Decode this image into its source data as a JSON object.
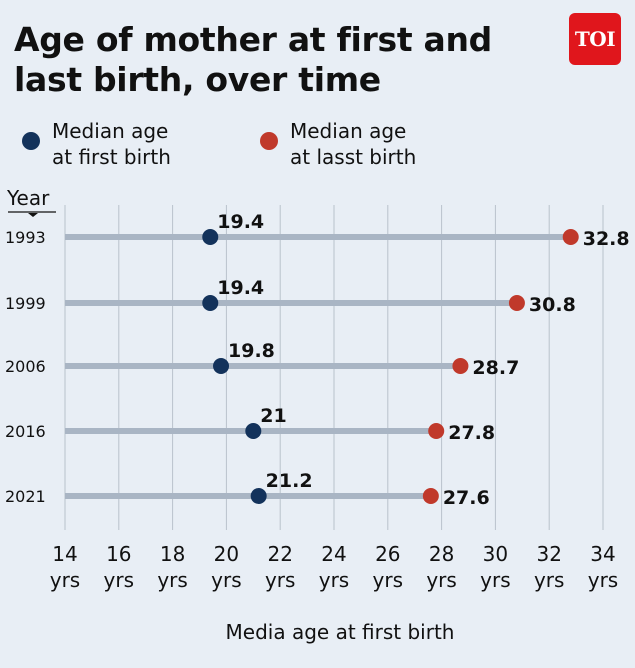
{
  "header": {
    "title_line1": "Age of mother at first and",
    "title_line2": "last birth, over time",
    "logo_text": "TOI"
  },
  "legend": {
    "first_line1": "Median age",
    "first_line2": "at first birth",
    "last_line1": "Median age",
    "last_line2": "at lasst birth"
  },
  "colors": {
    "first": "#13325b",
    "last": "#c0392b",
    "line": "#a9b5c4",
    "grid": "#b9c2cc"
  },
  "chart_data": {
    "type": "dumbbell",
    "y_axis_title": "Year",
    "xlabel": "Media age at first birth",
    "xlim": [
      14,
      34
    ],
    "x_ticks": [
      14,
      16,
      18,
      20,
      22,
      24,
      26,
      28,
      30,
      32,
      34
    ],
    "x_tick_suffix": "yrs",
    "categories": [
      "1993",
      "1999",
      "2006",
      "2016",
      "2021"
    ],
    "series": [
      {
        "name": "Median age at first birth",
        "values": [
          19.4,
          19.4,
          19.8,
          21,
          21.2
        ]
      },
      {
        "name": "Median age at lasst birth",
        "values": [
          32.8,
          30.8,
          28.7,
          27.8,
          27.6
        ]
      }
    ],
    "labels_first": [
      "19.4",
      "19.4",
      "19.8",
      "21",
      "21.2"
    ],
    "labels_last": [
      "32.8",
      "30.8",
      "28.7",
      "27.8",
      "27.6"
    ]
  }
}
